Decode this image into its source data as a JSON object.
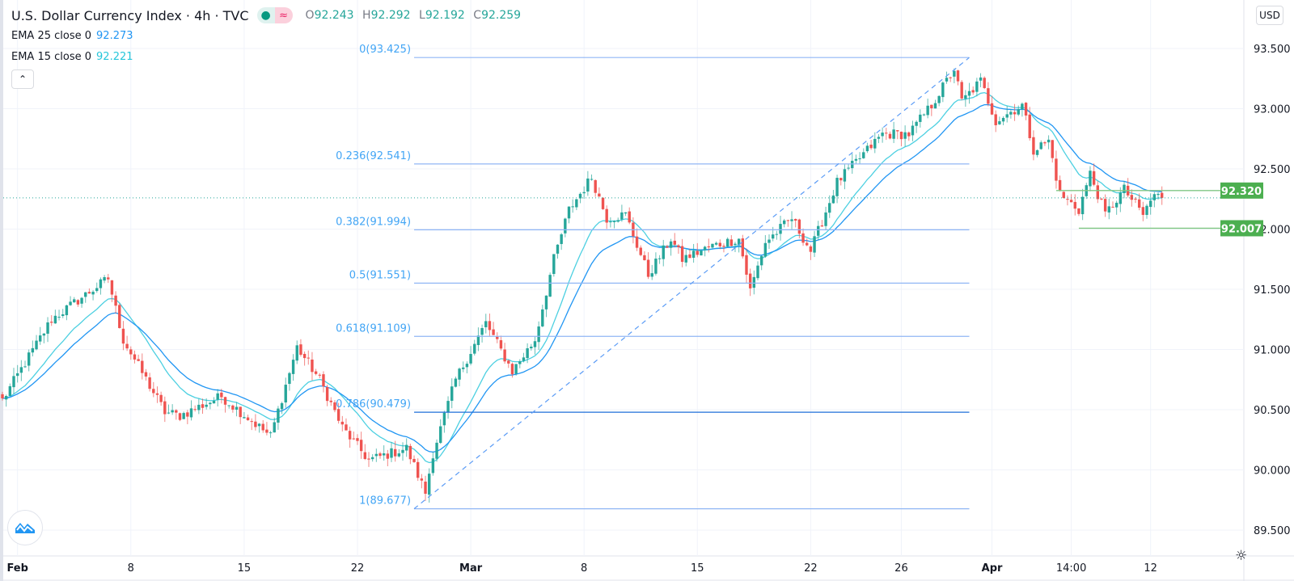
{
  "header": {
    "title": "U.S. Dollar Currency Index · 4h · TVC",
    "ohlc": {
      "o_label": "O",
      "o": "92.243",
      "h_label": "H",
      "h": "92.292",
      "l_label": "L",
      "l": "92.192",
      "c_label": "C",
      "c": "92.259"
    },
    "indicators": [
      {
        "label": "EMA 25 close 0",
        "value": "92.273",
        "color": "#2196f3"
      },
      {
        "label": "EMA 15 close 0",
        "value": "92.221",
        "color": "#26c6da"
      }
    ],
    "collapse_icon": "chevron-up-icon",
    "currency": "USD"
  },
  "colors": {
    "up": "#26a69a",
    "down": "#ef5350",
    "fib": "#5b9cf6",
    "support": "#4caf50"
  },
  "chart_data": {
    "type": "candlestick",
    "title": "U.S. Dollar Currency Index · 4h · TVC",
    "bars": 308,
    "ylim": [
      89.3,
      93.7
    ],
    "yticks": [
      "93.500",
      "93.000",
      "92.500",
      "92.000",
      "91.500",
      "91.000",
      "90.500",
      "90.000",
      "89.500"
    ],
    "ytick_values": [
      93.5,
      93.0,
      92.5,
      92.0,
      91.5,
      91.0,
      90.5,
      90.0,
      89.5
    ],
    "xticks": [
      {
        "label": "Feb",
        "bar": 4,
        "bold": true
      },
      {
        "label": "8",
        "bar": 34
      },
      {
        "label": "15",
        "bar": 64
      },
      {
        "label": "22",
        "bar": 94
      },
      {
        "label": "Mar",
        "bar": 124,
        "bold": true
      },
      {
        "label": "8",
        "bar": 154
      },
      {
        "label": "15",
        "bar": 184
      },
      {
        "label": "22",
        "bar": 214
      },
      {
        "label": "26",
        "bar": 238
      },
      {
        "label": "Apr",
        "bar": 262,
        "bold": true
      },
      {
        "label": "14:00",
        "bar": 283
      },
      {
        "label": "12",
        "bar": 304
      }
    ],
    "close_path": [
      [
        0,
        90.58
      ],
      [
        13,
        91.25
      ],
      [
        28,
        91.59
      ],
      [
        32,
        91.08
      ],
      [
        43,
        90.48
      ],
      [
        47,
        90.45
      ],
      [
        58,
        90.61
      ],
      [
        71,
        90.28
      ],
      [
        78,
        91.02
      ],
      [
        84,
        90.75
      ],
      [
        90,
        90.35
      ],
      [
        97,
        90.08
      ],
      [
        107,
        90.18
      ],
      [
        112,
        89.81
      ],
      [
        114,
        90.14
      ],
      [
        120,
        90.75
      ],
      [
        128,
        91.22
      ],
      [
        135,
        90.82
      ],
      [
        141,
        91.08
      ],
      [
        146,
        91.75
      ],
      [
        150,
        92.16
      ],
      [
        156,
        92.43
      ],
      [
        160,
        92.09
      ],
      [
        165,
        92.12
      ],
      [
        171,
        91.62
      ],
      [
        177,
        91.92
      ],
      [
        180,
        91.75
      ],
      [
        188,
        91.86
      ],
      [
        195,
        91.92
      ],
      [
        198,
        91.49
      ],
      [
        202,
        91.89
      ],
      [
        209,
        92.09
      ],
      [
        214,
        91.82
      ],
      [
        221,
        92.39
      ],
      [
        227,
        92.59
      ],
      [
        233,
        92.79
      ],
      [
        240,
        92.79
      ],
      [
        246,
        93.03
      ],
      [
        252,
        93.33
      ],
      [
        254,
        93.06
      ],
      [
        259,
        93.23
      ],
      [
        263,
        92.9
      ],
      [
        270,
        93.03
      ],
      [
        273,
        92.66
      ],
      [
        277,
        92.73
      ],
      [
        280,
        92.29
      ],
      [
        285,
        92.16
      ],
      [
        288,
        92.46
      ],
      [
        292,
        92.12
      ],
      [
        297,
        92.33
      ],
      [
        302,
        92.12
      ],
      [
        305,
        92.29
      ],
      [
        307,
        92.259
      ]
    ],
    "ema_periods": [
      15,
      25
    ],
    "last_price": 92.259,
    "fibonacci": {
      "levels": [
        {
          "label": "0(93.425)",
          "price": 93.425
        },
        {
          "label": "0.236(92.541)",
          "price": 92.541
        },
        {
          "label": "0.382(91.994)",
          "price": 91.994
        },
        {
          "label": "0.5(91.551)",
          "price": 91.551
        },
        {
          "label": "0.618(91.109)",
          "price": 91.109
        },
        {
          "label": "0.786(90.479)",
          "price": 90.479
        },
        {
          "label": "1(89.677)",
          "price": 89.677
        }
      ],
      "start_bar": 112,
      "end_bar": 256
    },
    "horizontal_lines": [
      {
        "label": "92.320",
        "price": 92.32,
        "from_bar": 279
      },
      {
        "label": "92.007",
        "price": 92.007,
        "from_bar": 285
      }
    ]
  }
}
